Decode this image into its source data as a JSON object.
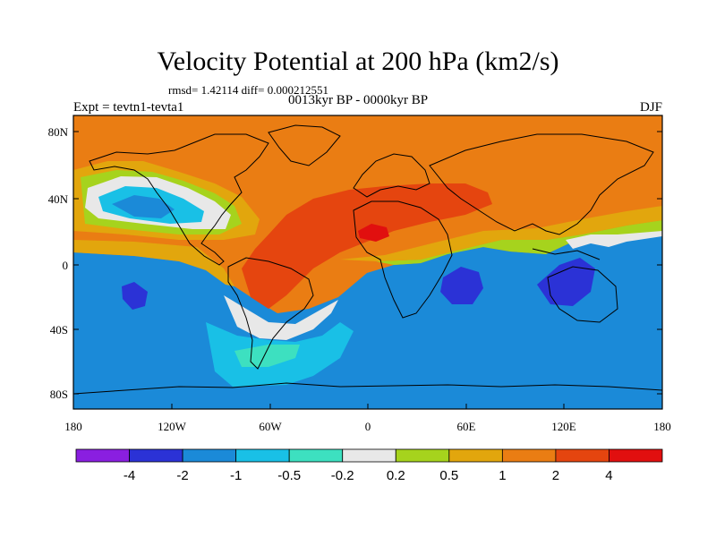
{
  "title": "Velocity Potential at 200 hPa (km2/s)",
  "stats": "rmsd= 1.42114 diff= 0.000212551",
  "period": "0013kyr BP - 0000kyr BP",
  "left_string": "Expt = tevtn1-tevta1",
  "right_string": "DJF",
  "map": {
    "lat_ticks": [
      "80N",
      "40N",
      "0",
      "40S",
      "80S"
    ],
    "lon_ticks": [
      "180",
      "120W",
      "60W",
      "0",
      "60E",
      "120E",
      "180"
    ],
    "lat_range": [
      -90,
      90
    ],
    "lon_range": [
      -180,
      180
    ]
  },
  "colorbar": {
    "colors": [
      "#8a1fe0",
      "#2b32d6",
      "#1b8ad8",
      "#19c0e6",
      "#3de0c0",
      "#e8e8e8",
      "#a6d31d",
      "#e2a60d",
      "#ea7d13",
      "#e5450f",
      "#e10f0f"
    ],
    "labels": [
      "-4",
      "-2",
      "-1",
      "-0.5",
      "-0.2",
      "0.2",
      "0.5",
      "1",
      "2",
      "4"
    ]
  }
}
